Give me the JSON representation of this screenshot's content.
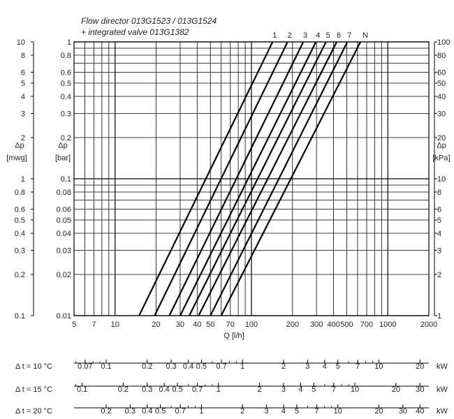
{
  "chart_data": {
    "type": "line",
    "title_line1": "Flow director 013G1523 / 013G1524",
    "title_line2": "+ integrated valve 013G1382",
    "x": {
      "label": "Q [l/h]",
      "scale": "log",
      "range": [
        5,
        2000
      ],
      "tick_labels": [
        5,
        7,
        10,
        20,
        30,
        40,
        50,
        70,
        100,
        200,
        300,
        400,
        500,
        700,
        1000,
        2000
      ]
    },
    "y": {
      "scale": "log",
      "range_bar": [
        0.01,
        1
      ],
      "left_outer": {
        "symbol": "Δp",
        "unit": "[mwg]",
        "ticks": [
          "0.1",
          "0.2",
          "0.3",
          "0.4",
          "0.5",
          "0.6",
          "0.8",
          "1",
          "2",
          "3",
          "4",
          "5",
          "6",
          "8",
          "10"
        ]
      },
      "left_inner": {
        "symbol": "Δp",
        "unit": "[bar]",
        "ticks": [
          "0.01",
          "0.02",
          "0.03",
          "0.04",
          "0.05",
          "0.06",
          "0.08",
          "0.1",
          "0.2",
          "0.3",
          "0.4",
          "0.5",
          "0.6",
          "0.8",
          "1"
        ]
      },
      "right": {
        "symbol": "Δp",
        "unit": "[kPa]",
        "ticks": [
          "1",
          "2",
          "3",
          "4",
          "5",
          "6",
          "8",
          "10",
          "20",
          "30",
          "40",
          "50",
          "60",
          "80",
          "100"
        ]
      }
    },
    "grid": true,
    "series": [
      {
        "name": "1",
        "points": [
          [
            15,
            0.01
          ],
          [
            143,
            1
          ]
        ]
      },
      {
        "name": "2",
        "points": [
          [
            19.5,
            0.01
          ],
          [
            184,
            1
          ]
        ]
      },
      {
        "name": "3",
        "points": [
          [
            25,
            0.01
          ],
          [
            240,
            1
          ]
        ]
      },
      {
        "name": "4",
        "points": [
          [
            30,
            0.01
          ],
          [
            297,
            1
          ]
        ]
      },
      {
        "name": "5",
        "points": [
          [
            35,
            0.01
          ],
          [
            352,
            1
          ]
        ]
      },
      {
        "name": "6",
        "points": [
          [
            41,
            0.01
          ],
          [
            422,
            1
          ]
        ]
      },
      {
        "name": "7",
        "points": [
          [
            50,
            0.01
          ],
          [
            505,
            1
          ]
        ]
      },
      {
        "name": "N",
        "points": [
          [
            60,
            0.01
          ],
          [
            630,
            1
          ]
        ]
      }
    ],
    "power_scales": [
      {
        "label": "Δ t = 10 °C",
        "unit": "kW",
        "ticks": [
          0.07,
          0.1,
          0.2,
          0.3,
          0.4,
          0.5,
          0.7,
          1,
          2,
          3,
          4,
          5,
          7,
          10,
          20
        ],
        "labels": [
          "0.07",
          "0.1",
          "0.2",
          "0.3",
          "0.4",
          "0.5",
          "0.7",
          "1",
          "2",
          "3",
          "4",
          "5",
          "7",
          "10",
          "20"
        ]
      },
      {
        "label": "Δ t = 15 °C",
        "unit": "kW",
        "ticks": [
          0.1,
          0.2,
          0.3,
          0.4,
          0.5,
          0.7,
          1,
          2,
          3,
          4,
          5,
          7,
          10,
          20,
          30
        ],
        "labels": [
          "0.1",
          "0.2",
          "0.3",
          "0.4",
          "0.5",
          "0.7",
          "1",
          "2",
          "3",
          "4",
          "5",
          "7",
          "10",
          "20",
          "30"
        ]
      },
      {
        "label": "Δ t = 20 °C",
        "unit": "kW",
        "ticks": [
          0.2,
          0.3,
          0.4,
          0.5,
          0.7,
          1,
          2,
          3,
          4,
          5,
          7,
          10,
          20,
          30,
          40
        ],
        "labels": [
          "0.2",
          "0.3",
          "0.4",
          "0.5",
          "0.7",
          "1",
          "2",
          "3",
          "4",
          "5",
          "7",
          "10",
          "20",
          "30",
          "40"
        ]
      }
    ]
  }
}
